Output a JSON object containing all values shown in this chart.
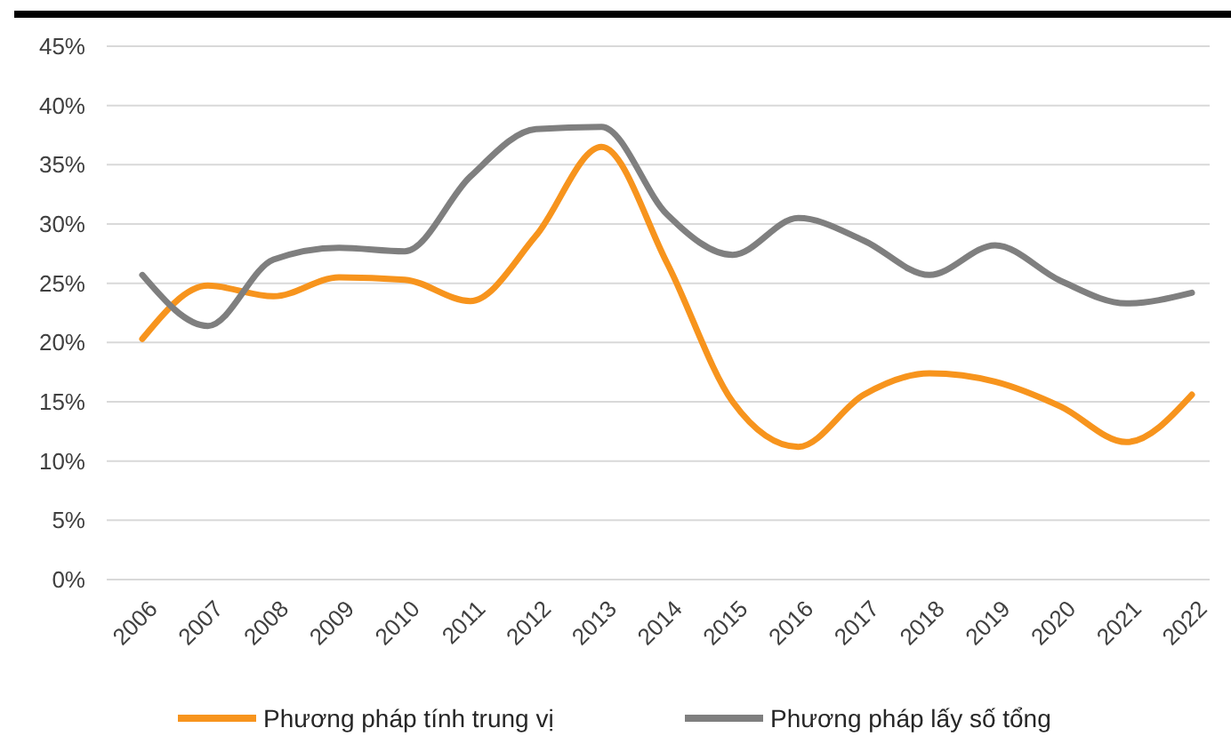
{
  "chart_data": {
    "type": "line",
    "categories": [
      "2006",
      "2007",
      "2008",
      "2009",
      "2010",
      "2011",
      "2012",
      "2013",
      "2014",
      "2015",
      "2016",
      "2017",
      "2018",
      "2019",
      "2020",
      "2021",
      "2022"
    ],
    "series": [
      {
        "name": "Phương pháp tính trung vị",
        "color": "#f7941d",
        "values": [
          20.3,
          24.8,
          23.9,
          25.5,
          25.3,
          23.5,
          29,
          36.5,
          26.7,
          15,
          11.2,
          15.6,
          17.4,
          16.7,
          14.6,
          11.6,
          15.6
        ]
      },
      {
        "name": "Phương pháp lấy số tổng",
        "color": "#7f7f7f",
        "values": [
          25.7,
          21.4,
          27,
          28,
          27.7,
          34,
          38,
          38.2,
          30.8,
          27.4,
          30.5,
          28.6,
          25.7,
          28.2,
          25.2,
          23.3,
          24.2
        ]
      }
    ],
    "ylim": [
      0,
      45
    ],
    "yticks": [
      {
        "value": 0,
        "label": "0%"
      },
      {
        "value": 5,
        "label": "5%"
      },
      {
        "value": 10,
        "label": "10%"
      },
      {
        "value": 15,
        "label": "15%"
      },
      {
        "value": 20,
        "label": "20%"
      },
      {
        "value": 25,
        "label": "25%"
      },
      {
        "value": 30,
        "label": "30%"
      },
      {
        "value": 35,
        "label": "35%"
      },
      {
        "value": 40,
        "label": "40%"
      },
      {
        "value": 45,
        "label": "45%"
      }
    ],
    "grid": "y",
    "legend": "bottom",
    "marker": "none",
    "line_style": "solid"
  }
}
